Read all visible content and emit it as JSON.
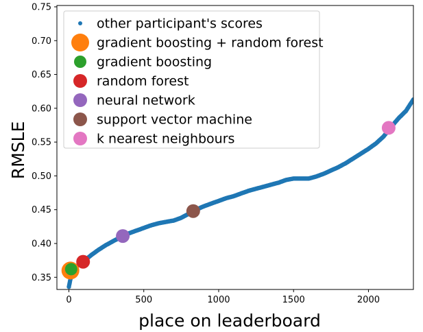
{
  "chart_data": {
    "type": "scatter",
    "xlabel": "place on leaderboard",
    "ylabel": "RMSLE",
    "xlim": [
      -80,
      2300
    ],
    "ylim": [
      0.332,
      0.752
    ],
    "x_ticks": [
      0,
      500,
      1000,
      1500,
      2000
    ],
    "y_ticks": [
      0.35,
      0.4,
      0.45,
      0.5,
      0.55,
      0.6,
      0.65,
      0.7,
      0.75
    ],
    "y_tick_labels": [
      "0.35",
      "0.40",
      "0.45",
      "0.50",
      "0.55",
      "0.60",
      "0.65",
      "0.70",
      "0.75"
    ],
    "grid": false,
    "legend_position": "top-left",
    "background_series": {
      "name": "other participant's scores",
      "color": "#1f77b4",
      "curve": [
        [
          0,
          0.336
        ],
        [
          20,
          0.358
        ],
        [
          50,
          0.366
        ],
        [
          100,
          0.374
        ],
        [
          150,
          0.383
        ],
        [
          200,
          0.391
        ],
        [
          250,
          0.398
        ],
        [
          300,
          0.404
        ],
        [
          350,
          0.41
        ],
        [
          400,
          0.415
        ],
        [
          450,
          0.419
        ],
        [
          500,
          0.423
        ],
        [
          550,
          0.427
        ],
        [
          600,
          0.43
        ],
        [
          650,
          0.432
        ],
        [
          700,
          0.434
        ],
        [
          750,
          0.438
        ],
        [
          800,
          0.444
        ],
        [
          850,
          0.45
        ],
        [
          900,
          0.455
        ],
        [
          950,
          0.459
        ],
        [
          1000,
          0.463
        ],
        [
          1050,
          0.467
        ],
        [
          1100,
          0.47
        ],
        [
          1150,
          0.474
        ],
        [
          1200,
          0.478
        ],
        [
          1250,
          0.481
        ],
        [
          1300,
          0.484
        ],
        [
          1350,
          0.487
        ],
        [
          1400,
          0.49
        ],
        [
          1450,
          0.494
        ],
        [
          1500,
          0.496
        ],
        [
          1550,
          0.496
        ],
        [
          1600,
          0.496
        ],
        [
          1650,
          0.499
        ],
        [
          1700,
          0.503
        ],
        [
          1750,
          0.508
        ],
        [
          1800,
          0.513
        ],
        [
          1850,
          0.519
        ],
        [
          1900,
          0.526
        ],
        [
          1950,
          0.533
        ],
        [
          2000,
          0.54
        ],
        [
          2050,
          0.548
        ],
        [
          2100,
          0.558
        ],
        [
          2150,
          0.572
        ],
        [
          2200,
          0.585
        ],
        [
          2250,
          0.596
        ],
        [
          2300,
          0.613
        ]
      ]
    },
    "series": [
      {
        "name": "gradient boosting + random forest",
        "x": 10,
        "y": 0.36,
        "color": "#ff7f0e"
      },
      {
        "name": "gradient boosting",
        "x": 15,
        "y": 0.362,
        "color": "#2ca02c"
      },
      {
        "name": "random forest",
        "x": 95,
        "y": 0.373,
        "color": "#d62728"
      },
      {
        "name": "neural network",
        "x": 360,
        "y": 0.411,
        "color": "#9467bd"
      },
      {
        "name": "support vector machine",
        "x": 830,
        "y": 0.448,
        "color": "#8c564b"
      },
      {
        "name": "k nearest neighbours",
        "x": 2135,
        "y": 0.571,
        "color": "#e377c2"
      }
    ]
  }
}
